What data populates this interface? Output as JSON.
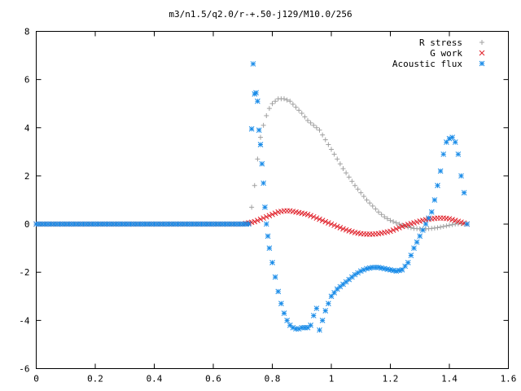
{
  "chart_data": {
    "type": "scatter",
    "title": "m3/n1.5/q2.0/r-+.50-j129/M10.0/256",
    "xlabel": "",
    "ylabel": "",
    "xlim": [
      0,
      1.6
    ],
    "ylim": [
      -6,
      8
    ],
    "x_ticks": [
      "0",
      "0.2",
      "0.4",
      "0.6",
      "0.8",
      "1",
      "1.2",
      "1.4",
      "1.6"
    ],
    "y_ticks": [
      "-6",
      "-4",
      "-2",
      "0",
      "2",
      "4",
      "6",
      "8"
    ],
    "grid": false,
    "legend_position": "top-right",
    "series": [
      {
        "name": "R stress",
        "marker": "plus",
        "color": "#a0a0a0",
        "x": [
          0.0,
          0.1,
          0.2,
          0.3,
          0.4,
          0.5,
          0.6,
          0.7,
          0.72,
          0.73,
          0.74,
          0.75,
          0.76,
          0.77,
          0.78,
          0.79,
          0.8,
          0.82,
          0.84,
          0.86,
          0.88,
          0.9,
          0.92,
          0.94,
          0.96,
          0.98,
          1.0,
          1.02,
          1.04,
          1.06,
          1.08,
          1.1,
          1.12,
          1.14,
          1.16,
          1.18,
          1.2,
          1.22,
          1.24,
          1.26,
          1.28,
          1.3,
          1.32,
          1.34,
          1.36,
          1.38,
          1.4,
          1.42,
          1.44,
          1.46
        ],
        "y": [
          0,
          0,
          0,
          0,
          0,
          0,
          0,
          0,
          0.05,
          0.7,
          1.6,
          2.7,
          3.6,
          4.1,
          4.5,
          4.8,
          5.0,
          5.2,
          5.2,
          5.1,
          4.85,
          4.6,
          4.3,
          4.1,
          3.9,
          3.5,
          3.1,
          2.7,
          2.3,
          1.95,
          1.6,
          1.3,
          1.0,
          0.75,
          0.5,
          0.3,
          0.15,
          0.05,
          -0.05,
          -0.12,
          -0.18,
          -0.2,
          -0.2,
          -0.18,
          -0.15,
          -0.1,
          -0.05,
          0,
          0.02,
          0.0
        ]
      },
      {
        "name": "G work",
        "marker": "cross",
        "color": "#e0202a",
        "x": [
          0.0,
          0.1,
          0.2,
          0.3,
          0.4,
          0.5,
          0.6,
          0.7,
          0.74,
          0.76,
          0.78,
          0.8,
          0.82,
          0.84,
          0.86,
          0.88,
          0.9,
          0.92,
          0.94,
          0.96,
          0.98,
          1.0,
          1.02,
          1.04,
          1.06,
          1.08,
          1.1,
          1.12,
          1.14,
          1.16,
          1.18,
          1.2,
          1.22,
          1.24,
          1.26,
          1.28,
          1.3,
          1.32,
          1.34,
          1.36,
          1.38,
          1.4,
          1.42,
          1.44,
          1.46
        ],
        "y": [
          0,
          0,
          0,
          0,
          0,
          0,
          0,
          0,
          0.1,
          0.2,
          0.3,
          0.4,
          0.5,
          0.55,
          0.55,
          0.5,
          0.45,
          0.4,
          0.3,
          0.2,
          0.1,
          0.0,
          -0.1,
          -0.2,
          -0.28,
          -0.35,
          -0.4,
          -0.42,
          -0.42,
          -0.4,
          -0.35,
          -0.3,
          -0.2,
          -0.1,
          -0.02,
          0.05,
          0.12,
          0.18,
          0.22,
          0.25,
          0.25,
          0.22,
          0.15,
          0.08,
          0.0
        ]
      },
      {
        "name": "Acoustic flux",
        "marker": "star",
        "color": "#1a8ce8",
        "x": [
          0.0,
          0.02,
          0.04,
          0.06,
          0.08,
          0.1,
          0.12,
          0.14,
          0.16,
          0.18,
          0.2,
          0.22,
          0.24,
          0.26,
          0.28,
          0.3,
          0.32,
          0.34,
          0.36,
          0.38,
          0.4,
          0.42,
          0.44,
          0.46,
          0.48,
          0.5,
          0.52,
          0.54,
          0.56,
          0.58,
          0.6,
          0.62,
          0.64,
          0.66,
          0.68,
          0.7,
          0.72,
          0.73,
          0.735,
          0.74,
          0.745,
          0.75,
          0.755,
          0.76,
          0.765,
          0.77,
          0.775,
          0.78,
          0.785,
          0.79,
          0.8,
          0.81,
          0.82,
          0.83,
          0.84,
          0.85,
          0.86,
          0.87,
          0.88,
          0.89,
          0.9,
          0.91,
          0.92,
          0.93,
          0.94,
          0.95,
          0.96,
          0.97,
          0.98,
          0.99,
          1.0,
          1.02,
          1.04,
          1.06,
          1.08,
          1.1,
          1.12,
          1.14,
          1.16,
          1.18,
          1.2,
          1.22,
          1.24,
          1.26,
          1.28,
          1.3,
          1.32,
          1.34,
          1.35,
          1.36,
          1.37,
          1.38,
          1.39,
          1.4,
          1.41,
          1.42,
          1.43,
          1.44,
          1.45,
          1.46
        ],
        "y": [
          0,
          0,
          0,
          0,
          0,
          0,
          0,
          0,
          0,
          0,
          0,
          0,
          0,
          0,
          0,
          0,
          0,
          0,
          0,
          0,
          0,
          0,
          0,
          0,
          0,
          0,
          0,
          0,
          0,
          0,
          0,
          0,
          0,
          0,
          0,
          0,
          0,
          3.95,
          6.65,
          5.4,
          5.45,
          5.1,
          3.9,
          3.3,
          2.5,
          1.7,
          0.7,
          0.0,
          -0.5,
          -1.0,
          -1.6,
          -2.2,
          -2.8,
          -3.3,
          -3.7,
          -4.0,
          -4.2,
          -4.3,
          -4.35,
          -4.35,
          -4.3,
          -4.3,
          -4.3,
          -4.2,
          -3.8,
          -3.5,
          -4.4,
          -4.0,
          -3.6,
          -3.3,
          -3.0,
          -2.7,
          -2.5,
          -2.3,
          -2.1,
          -1.95,
          -1.85,
          -1.8,
          -1.8,
          -1.85,
          -1.9,
          -1.95,
          -1.9,
          -1.6,
          -1.0,
          -0.5,
          0.0,
          0.5,
          1.0,
          1.6,
          2.2,
          2.9,
          3.4,
          3.55,
          3.6,
          3.4,
          2.9,
          2.0,
          1.3,
          0.0
        ]
      }
    ]
  }
}
